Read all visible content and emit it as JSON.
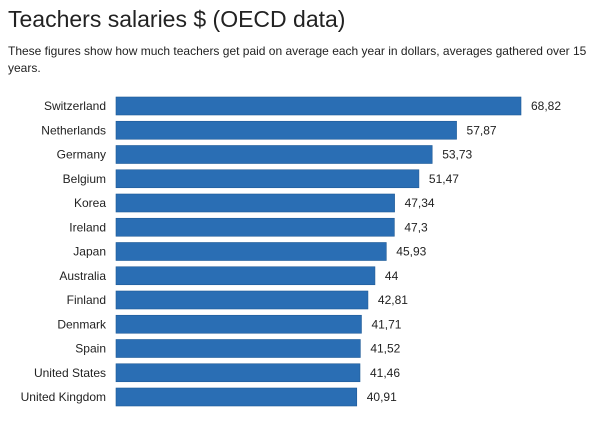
{
  "chart_data": {
    "type": "bar",
    "orientation": "horizontal",
    "title": "Teachers salaries $ (OECD data)",
    "subtitle": "These figures show how much teachers get paid on average each year in dollars, averages gathered over 15 years.",
    "categories": [
      "Switzerland",
      "Netherlands",
      "Germany",
      "Belgium",
      "Korea",
      "Ireland",
      "Japan",
      "Australia",
      "Finland",
      "Denmark",
      "Spain",
      "United States",
      "United Kingdom"
    ],
    "values": [
      68.82,
      57.87,
      53.73,
      51.47,
      47.34,
      47.3,
      45.93,
      44,
      42.81,
      41.71,
      41.52,
      41.46,
      40.91
    ],
    "value_labels": [
      "68,82",
      "57,87",
      "53,73",
      "51,47",
      "47,34",
      "47,3",
      "45,93",
      "44",
      "42,81",
      "41,71",
      "41,52",
      "41,46",
      "40,91"
    ],
    "xlim": [
      0,
      68.82
    ],
    "grid": false,
    "bar_color": "#2a6eb4"
  }
}
